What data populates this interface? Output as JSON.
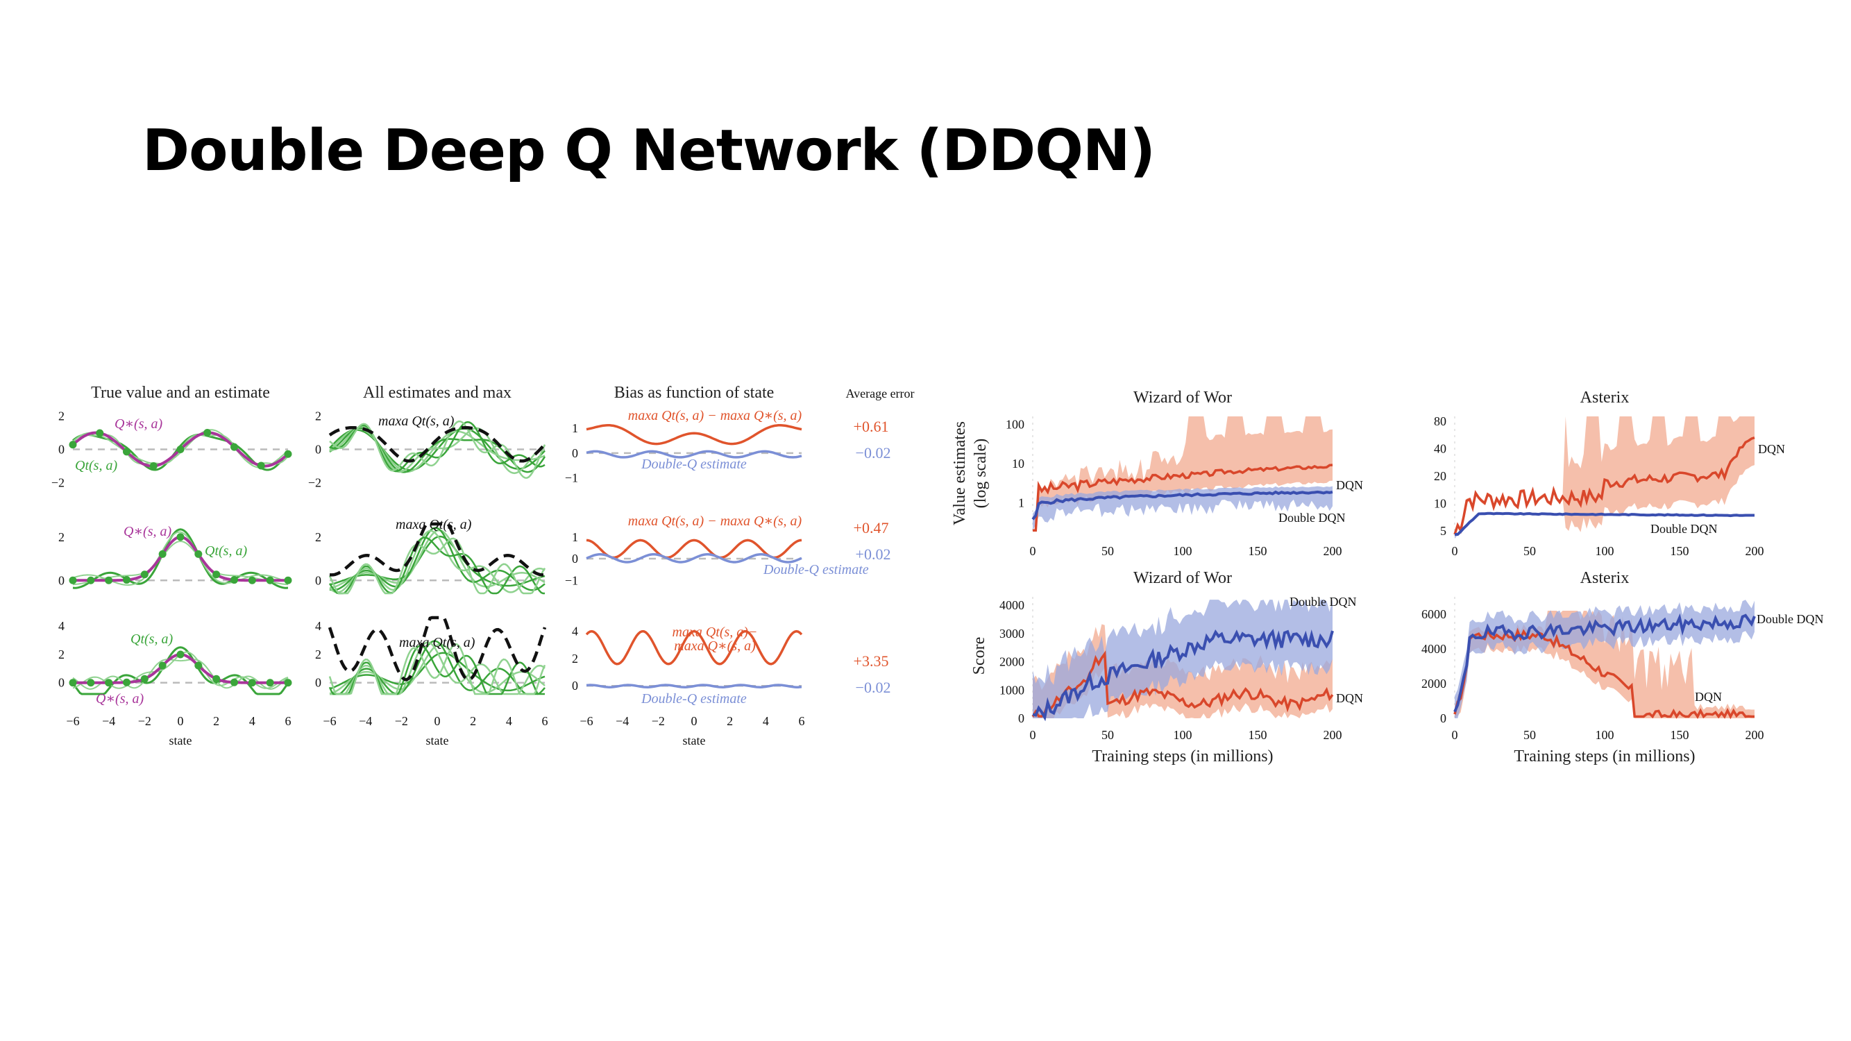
{
  "slide": {
    "title": "Double Deep Q Network (DDQN)"
  },
  "left_figure": {
    "column_titles": [
      "True value and an estimate",
      "All estimates and max",
      "Bias as function of state",
      "Average error"
    ],
    "x_label": "state",
    "x_ticks": [
      "−6",
      "−4",
      "−2",
      "0",
      "2",
      "4",
      "6"
    ],
    "rows": [
      {
        "y_ticks": [
          "2",
          "0",
          "−2"
        ],
        "col1_labels": [
          "Q∗(s, a)",
          "Qt(s, a)"
        ],
        "col2_label": "maxa Qt(s, a)",
        "col3_labels": [
          "maxa Qt(s, a) − maxa Q∗(s, a)",
          "Double-Q estimate"
        ],
        "col3_y_ticks": [
          "1",
          "0",
          "−1"
        ],
        "errors": [
          "+0.61",
          "−0.02"
        ]
      },
      {
        "y_ticks": [
          "2",
          "0"
        ],
        "col1_labels": [
          "Q∗(s, a)",
          "Qt(s, a)"
        ],
        "col2_label": "maxa Qt(s, a)",
        "col3_labels": [
          "maxa Qt(s, a) − maxa Q∗(s, a)",
          "Double-Q estimate"
        ],
        "col3_y_ticks": [
          "1",
          "0",
          "−1"
        ],
        "errors": [
          "+0.47",
          "+0.02"
        ]
      },
      {
        "y_ticks": [
          "4",
          "2",
          "0"
        ],
        "col1_labels": [
          "Qt(s, a)",
          "Q∗(s, a)"
        ],
        "col2_label": "maxa Qt(s, a)",
        "col3_labels": [
          "maxa Qt(s, a)−",
          "maxa Q∗(s, a)",
          "Double-Q estimate"
        ],
        "col3_y_ticks": [
          "4",
          "2",
          "0"
        ],
        "errors": [
          "+3.35",
          "−0.02"
        ]
      }
    ],
    "colors": {
      "true": "#a8359a",
      "estimate": "#3aa53a",
      "estimate_light": "#8fd28f",
      "max": "#111111",
      "bias": "#e0542c",
      "double_q": "#7b8fd6"
    }
  },
  "right_figure": {
    "game_titles": [
      "Wizard of Wor",
      "Asterix",
      "Wizard of Wor",
      "Asterix"
    ],
    "top_y_label": [
      "Value estimates",
      "(log scale)"
    ],
    "bottom_y_label": "Score",
    "x_label": "Training steps (in millions)",
    "x_ticks": [
      "0",
      "50",
      "100",
      "150",
      "200"
    ],
    "wizard_value_ticks": [
      "100",
      "10",
      "1"
    ],
    "asterix_value_ticks": [
      "80",
      "40",
      "20",
      "10",
      "5"
    ],
    "wizard_score_ticks": [
      "4000",
      "3000",
      "2000",
      "1000",
      "0"
    ],
    "asterix_score_ticks": [
      "6000",
      "4000",
      "2000",
      "0"
    ],
    "series_labels": {
      "dqn": "DQN",
      "double_dqn": "Double DQN"
    },
    "colors": {
      "dqn": "#d9472b",
      "dqn_band": "#f2a98f",
      "double_dqn": "#3a4fb0",
      "double_band": "#9aa8de"
    }
  }
}
